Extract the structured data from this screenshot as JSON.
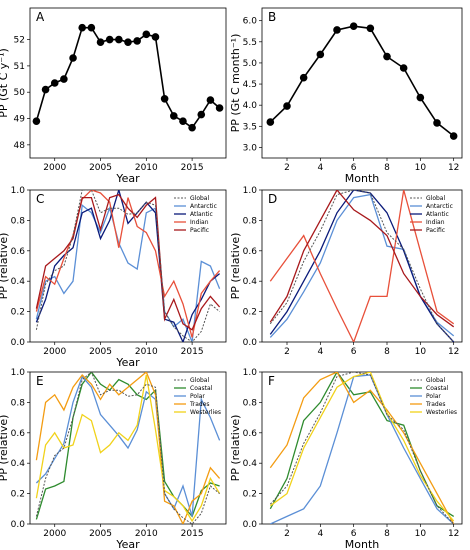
{
  "figure": {
    "background": "#ffffff"
  },
  "chart_data": [
    {
      "id": "A",
      "type": "line",
      "panel_label": "A",
      "xlabel": "Year",
      "ylabel": "PP (Gt C y⁻¹)",
      "xlim": [
        1997.3,
        2018.7
      ],
      "ylim": [
        47.5,
        53.2
      ],
      "xticks": [
        2000,
        2005,
        2010,
        2015
      ],
      "yticks": [
        48,
        49,
        50,
        51,
        52
      ],
      "markers": true,
      "legend": false,
      "series": [
        {
          "color": "#000000",
          "x": [
            1998,
            1999,
            2000,
            2001,
            2002,
            2003,
            2004,
            2005,
            2006,
            2007,
            2008,
            2009,
            2010,
            2011,
            2012,
            2013,
            2014,
            2015,
            2016,
            2017,
            2018
          ],
          "y": [
            48.9,
            50.1,
            50.35,
            50.5,
            51.3,
            52.45,
            52.45,
            51.9,
            52.0,
            52.0,
            51.9,
            51.95,
            52.2,
            52.1,
            49.75,
            49.1,
            48.9,
            48.65,
            49.15,
            49.7,
            49.4
          ]
        }
      ]
    },
    {
      "id": "B",
      "type": "line",
      "panel_label": "B",
      "xlabel": "Month",
      "ylabel": "PP (Gt C month⁻¹)",
      "xlim": [
        0.5,
        12.5
      ],
      "ylim": [
        2.75,
        6.3
      ],
      "xticks": [
        2,
        4,
        6,
        8,
        10,
        12
      ],
      "yticks": [
        3.0,
        3.5,
        4.0,
        4.5,
        5.0,
        5.5,
        6.0
      ],
      "yticklabels": [
        "3.0",
        "3.5",
        "4.0",
        "4.5",
        "5.0",
        "5.5",
        "6.0"
      ],
      "markers": true,
      "legend": false,
      "series": [
        {
          "color": "#000000",
          "x": [
            1,
            2,
            3,
            4,
            5,
            6,
            7,
            8,
            9,
            10,
            11,
            12
          ],
          "y": [
            3.6,
            3.98,
            4.65,
            5.2,
            5.78,
            5.87,
            5.82,
            5.15,
            4.88,
            4.18,
            3.58,
            3.27
          ]
        }
      ]
    },
    {
      "id": "C",
      "type": "line",
      "panel_label": "C",
      "xlabel": "Year",
      "ylabel": "PP (relative)",
      "xlim": [
        1997.3,
        2018.7
      ],
      "ylim": [
        0,
        1.0
      ],
      "xticks": [
        2000,
        2005,
        2010,
        2015
      ],
      "yticks": [
        0.0,
        0.2,
        0.4,
        0.6,
        0.8,
        1.0
      ],
      "yticklabels": [
        "0.0",
        "0.2",
        "0.4",
        "0.6",
        "0.8",
        "1.0"
      ],
      "markers": false,
      "legend": true,
      "legend_position": "top-right",
      "series": [
        {
          "name": "Global",
          "color": "#555555",
          "dashed": true,
          "x": [
            1998,
            1999,
            2000,
            2001,
            2002,
            2003,
            2004,
            2005,
            2006,
            2007,
            2008,
            2009,
            2010,
            2011,
            2012,
            2013,
            2014,
            2015,
            2016,
            2017,
            2018
          ],
          "y": [
            0.08,
            0.38,
            0.47,
            0.5,
            0.7,
            1.0,
            1.0,
            0.85,
            0.88,
            0.88,
            0.84,
            0.85,
            0.92,
            0.9,
            0.2,
            0.1,
            0.04,
            0.0,
            0.07,
            0.25,
            0.2
          ]
        },
        {
          "name": "Antarctic",
          "color": "#5b8fd6",
          "x": [
            1998,
            1999,
            2000,
            2001,
            2002,
            2003,
            2004,
            2005,
            2006,
            2007,
            2008,
            2009,
            2010,
            2011,
            2012,
            2013,
            2014,
            2015,
            2016,
            2017,
            2018
          ],
          "y": [
            0.15,
            0.4,
            0.43,
            0.32,
            0.4,
            0.9,
            0.85,
            0.72,
            0.88,
            0.65,
            0.52,
            0.48,
            0.85,
            0.88,
            0.2,
            0.1,
            0.15,
            0.0,
            0.53,
            0.5,
            0.35
          ]
        },
        {
          "name": "Atlantic",
          "color": "#0a1a7a",
          "x": [
            1998,
            1999,
            2000,
            2001,
            2002,
            2003,
            2004,
            2005,
            2006,
            2007,
            2008,
            2009,
            2010,
            2011,
            2012,
            2013,
            2014,
            2015,
            2016,
            2017,
            2018
          ],
          "y": [
            0.13,
            0.28,
            0.5,
            0.57,
            0.62,
            0.85,
            0.88,
            0.68,
            0.8,
            1.0,
            0.78,
            0.85,
            0.92,
            0.85,
            0.15,
            0.13,
            0.0,
            0.18,
            0.28,
            0.4,
            0.45
          ]
        },
        {
          "name": "Indian",
          "color": "#e8503a",
          "x": [
            1998,
            1999,
            2000,
            2001,
            2002,
            2003,
            2004,
            2005,
            2006,
            2007,
            2008,
            2009,
            2010,
            2011,
            2012,
            2013,
            2014,
            2015,
            2016,
            2017,
            2018
          ],
          "y": [
            0.2,
            0.43,
            0.38,
            0.55,
            0.7,
            0.94,
            1.0,
            0.98,
            0.92,
            0.62,
            0.95,
            0.76,
            0.72,
            0.6,
            0.3,
            0.4,
            0.25,
            0.03,
            0.32,
            0.4,
            0.47
          ]
        },
        {
          "name": "Pacific",
          "color": "#a8191c",
          "x": [
            1998,
            1999,
            2000,
            2001,
            2002,
            2003,
            2004,
            2005,
            2006,
            2007,
            2008,
            2009,
            2010,
            2011,
            2012,
            2013,
            2014,
            2015,
            2016,
            2017,
            2018
          ],
          "y": [
            0.22,
            0.5,
            0.55,
            0.6,
            0.68,
            0.95,
            0.95,
            0.74,
            0.95,
            0.97,
            0.88,
            0.82,
            0.9,
            0.95,
            0.15,
            0.28,
            0.12,
            0.08,
            0.22,
            0.3,
            0.23
          ]
        }
      ]
    },
    {
      "id": "D",
      "type": "line",
      "panel_label": "D",
      "xlabel": "",
      "ylabel": "PP (relative)",
      "xlim": [
        0.5,
        12.5
      ],
      "ylim": [
        0,
        1.0
      ],
      "xticks": [
        2,
        4,
        6,
        8,
        10,
        12
      ],
      "yticks": [
        0.0,
        0.2,
        0.4,
        0.6,
        0.8,
        1.0
      ],
      "yticklabels": [
        "0.0",
        "0.2",
        "0.4",
        "0.6",
        "0.8",
        "1.0"
      ],
      "markers": false,
      "legend": true,
      "legend_position": "top-right",
      "series": [
        {
          "name": "Global",
          "color": "#555555",
          "dashed": true,
          "x": [
            1,
            2,
            3,
            4,
            5,
            6,
            7,
            8,
            9,
            10,
            11,
            12
          ],
          "y": [
            0.12,
            0.26,
            0.53,
            0.73,
            0.97,
            1.0,
            0.98,
            0.72,
            0.61,
            0.35,
            0.12,
            0.0
          ]
        },
        {
          "name": "Antarctic",
          "color": "#5b8fd6",
          "x": [
            1,
            2,
            3,
            4,
            5,
            6,
            7,
            8,
            9,
            10,
            11,
            12
          ],
          "y": [
            0.03,
            0.15,
            0.33,
            0.52,
            0.8,
            0.95,
            0.97,
            0.63,
            0.61,
            0.3,
            0.13,
            0.04
          ]
        },
        {
          "name": "Atlantic",
          "color": "#0a1a7a",
          "x": [
            1,
            2,
            3,
            4,
            5,
            6,
            7,
            8,
            9,
            10,
            11,
            12
          ],
          "y": [
            0.05,
            0.2,
            0.4,
            0.6,
            0.85,
            1.0,
            0.98,
            0.85,
            0.6,
            0.3,
            0.12,
            0.0
          ]
        },
        {
          "name": "Indian",
          "color": "#e8503a",
          "x": [
            1,
            2,
            3,
            4,
            5,
            6,
            7,
            8,
            9,
            10,
            11,
            12
          ],
          "y": [
            0.4,
            0.55,
            0.7,
            0.45,
            0.22,
            0.0,
            0.3,
            0.3,
            1.0,
            0.6,
            0.2,
            0.12
          ]
        },
        {
          "name": "Pacific",
          "color": "#a8191c",
          "x": [
            1,
            2,
            3,
            4,
            5,
            6,
            7,
            8,
            9,
            10,
            11,
            12
          ],
          "y": [
            0.13,
            0.3,
            0.6,
            0.8,
            1.0,
            0.87,
            0.8,
            0.7,
            0.45,
            0.3,
            0.18,
            0.1
          ]
        }
      ]
    },
    {
      "id": "E",
      "type": "line",
      "panel_label": "E",
      "xlabel": "Year",
      "ylabel": "PP (relative)",
      "xlim": [
        1997.3,
        2018.7
      ],
      "ylim": [
        0,
        1.0
      ],
      "xticks": [
        2000,
        2005,
        2010,
        2015
      ],
      "yticks": [
        0.0,
        0.2,
        0.4,
        0.6,
        0.8,
        1.0
      ],
      "yticklabels": [
        "0.0",
        "0.2",
        "0.4",
        "0.6",
        "0.8",
        "1.0"
      ],
      "markers": false,
      "legend": true,
      "legend_position": "top-right",
      "series": [
        {
          "name": "Global",
          "color": "#555555",
          "dashed": true,
          "x": [
            1998,
            1999,
            2000,
            2001,
            2002,
            2003,
            2004,
            2005,
            2006,
            2007,
            2008,
            2009,
            2010,
            2011,
            2012,
            2013,
            2014,
            2015,
            2016,
            2017,
            2018
          ],
          "y": [
            0.05,
            0.3,
            0.45,
            0.5,
            0.7,
            0.95,
            1.0,
            0.85,
            0.88,
            0.88,
            0.84,
            0.85,
            0.92,
            0.9,
            0.2,
            0.1,
            0.04,
            0.0,
            0.07,
            0.25,
            0.2
          ]
        },
        {
          "name": "Coastal",
          "color": "#2e8b2e",
          "x": [
            1998,
            1999,
            2000,
            2001,
            2002,
            2003,
            2004,
            2005,
            2006,
            2007,
            2008,
            2009,
            2010,
            2011,
            2012,
            2013,
            2014,
            2015,
            2016,
            2017,
            2018
          ],
          "y": [
            0.03,
            0.23,
            0.25,
            0.28,
            0.7,
            0.92,
            1.0,
            0.92,
            0.88,
            0.95,
            0.92,
            0.85,
            0.82,
            0.88,
            0.28,
            0.18,
            0.12,
            0.05,
            0.22,
            0.27,
            0.25
          ]
        },
        {
          "name": "Polar",
          "color": "#5b8fd6",
          "x": [
            1998,
            1999,
            2000,
            2001,
            2002,
            2003,
            2004,
            2005,
            2006,
            2007,
            2008,
            2009,
            2010,
            2011,
            2012,
            2013,
            2014,
            2015,
            2016,
            2017,
            2018
          ],
          "y": [
            0.27,
            0.33,
            0.43,
            0.53,
            0.8,
            0.97,
            0.9,
            0.72,
            0.65,
            0.58,
            0.5,
            0.62,
            0.87,
            0.82,
            0.2,
            0.1,
            0.25,
            0.05,
            0.82,
            0.7,
            0.55
          ]
        },
        {
          "name": "Trades",
          "color": "#f39c12",
          "x": [
            1998,
            1999,
            2000,
            2001,
            2002,
            2003,
            2004,
            2005,
            2006,
            2007,
            2008,
            2009,
            2010,
            2011,
            2012,
            2013,
            2014,
            2015,
            2016,
            2017,
            2018
          ],
          "y": [
            0.42,
            0.8,
            0.85,
            0.75,
            0.9,
            0.98,
            0.92,
            0.82,
            0.92,
            0.85,
            0.9,
            0.95,
            1.0,
            0.85,
            0.15,
            0.12,
            0.0,
            0.15,
            0.2,
            0.37,
            0.3
          ]
        },
        {
          "name": "Westerlies",
          "color": "#f1d21a",
          "x": [
            1998,
            1999,
            2000,
            2001,
            2002,
            2003,
            2004,
            2005,
            2006,
            2007,
            2008,
            2009,
            2010,
            2011,
            2012,
            2013,
            2014,
            2015,
            2016,
            2017,
            2018
          ],
          "y": [
            0.17,
            0.52,
            0.6,
            0.5,
            0.52,
            0.72,
            0.68,
            0.47,
            0.52,
            0.6,
            0.55,
            0.65,
            0.98,
            0.62,
            0.22,
            0.18,
            0.12,
            0.02,
            0.12,
            0.3,
            0.2
          ]
        }
      ]
    },
    {
      "id": "F",
      "type": "line",
      "panel_label": "F",
      "xlabel": "Month",
      "ylabel": "PP (relative)",
      "xlim": [
        0.5,
        12.5
      ],
      "ylim": [
        0,
        1.0
      ],
      "xticks": [
        2,
        4,
        6,
        8,
        10,
        12
      ],
      "yticks": [
        0.0,
        0.2,
        0.4,
        0.6,
        0.8,
        1.0
      ],
      "yticklabels": [
        "0.0",
        "0.2",
        "0.4",
        "0.6",
        "0.8",
        "1.0"
      ],
      "markers": false,
      "legend": true,
      "legend_position": "top-right",
      "series": [
        {
          "name": "Global",
          "color": "#555555",
          "dashed": true,
          "x": [
            1,
            2,
            3,
            4,
            5,
            6,
            7,
            8,
            9,
            10,
            11,
            12
          ],
          "y": [
            0.13,
            0.25,
            0.53,
            0.73,
            0.97,
            1.0,
            0.98,
            0.72,
            0.62,
            0.35,
            0.12,
            0.0
          ]
        },
        {
          "name": "Coastal",
          "color": "#2e8b2e",
          "x": [
            1,
            2,
            3,
            4,
            5,
            6,
            7,
            8,
            9,
            10,
            11,
            12
          ],
          "y": [
            0.1,
            0.3,
            0.68,
            0.8,
            1.0,
            0.85,
            0.87,
            0.68,
            0.65,
            0.35,
            0.12,
            0.05
          ]
        },
        {
          "name": "Polar",
          "color": "#5b8fd6",
          "x": [
            1,
            2,
            3,
            4,
            5,
            6,
            7,
            8,
            9,
            10,
            11,
            12
          ],
          "y": [
            0.0,
            0.05,
            0.1,
            0.25,
            0.6,
            0.97,
            0.98,
            0.72,
            0.5,
            0.3,
            0.1,
            0.0
          ]
        },
        {
          "name": "Trades",
          "color": "#f39c12",
          "x": [
            1,
            2,
            3,
            4,
            5,
            6,
            7,
            8,
            9,
            10,
            11,
            12
          ],
          "y": [
            0.37,
            0.52,
            0.83,
            0.95,
            1.0,
            0.8,
            0.88,
            0.75,
            0.6,
            0.4,
            0.2,
            0.0
          ]
        },
        {
          "name": "Westerlies",
          "color": "#f1d21a",
          "x": [
            1,
            2,
            3,
            4,
            5,
            6,
            7,
            8,
            9,
            10,
            11,
            12
          ],
          "y": [
            0.12,
            0.2,
            0.5,
            0.7,
            0.9,
            0.97,
            1.0,
            0.73,
            0.55,
            0.32,
            0.15,
            0.02
          ]
        }
      ]
    }
  ]
}
